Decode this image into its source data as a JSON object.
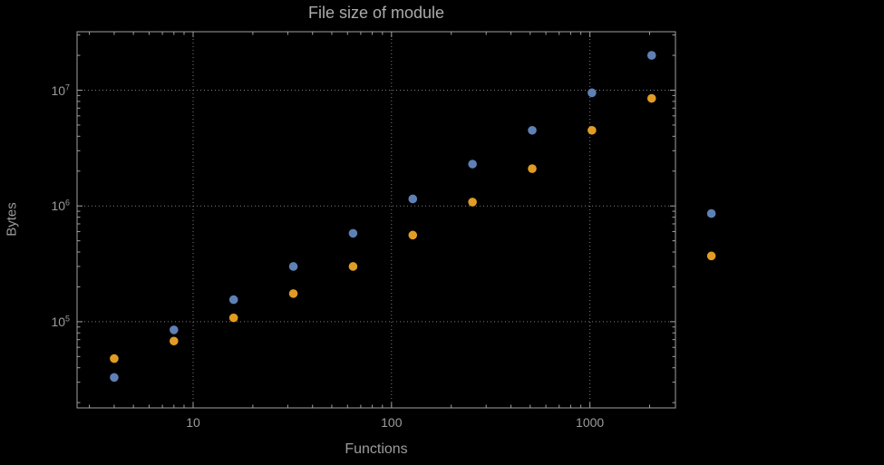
{
  "chart_data": {
    "type": "scatter",
    "title": "File size of module",
    "xlabel": "Functions",
    "ylabel": "Bytes",
    "x_axis_scale": "log",
    "y_axis_scale": "log",
    "xlim": [
      2.6,
      2700
    ],
    "ylim": [
      18000,
      32000000
    ],
    "grid": true,
    "grid_style": "dotted",
    "legend": "none",
    "x_ticks": [
      {
        "v": 10,
        "label": "10"
      },
      {
        "v": 100,
        "label": "100"
      },
      {
        "v": 1000,
        "label": "1000"
      }
    ],
    "y_ticks": [
      {
        "v": 100000,
        "label": "10^5"
      },
      {
        "v": 1000000,
        "label": "10^6"
      },
      {
        "v": 10000000,
        "label": "10^7"
      }
    ],
    "x": [
      4,
      8,
      16,
      32,
      64,
      128,
      256,
      512,
      1024,
      2048,
      4096
    ],
    "series": [
      {
        "name": "blue",
        "color": "#5e81b5",
        "values": [
          33000,
          85000,
          155000,
          300000,
          580000,
          1150000,
          2300000,
          4500000,
          9500000,
          20000000,
          860000
        ]
      },
      {
        "name": "orange",
        "color": "#e19c24",
        "values": [
          48000,
          68000,
          108000,
          175000,
          300000,
          560000,
          1080000,
          2100000,
          4500000,
          8500000,
          370000
        ]
      }
    ],
    "colors": {
      "background": "#000000",
      "frame": "#a0a0a0",
      "grid": "#7d7d7d",
      "text": "#9c9c9c",
      "title_text": "#ababab"
    }
  }
}
